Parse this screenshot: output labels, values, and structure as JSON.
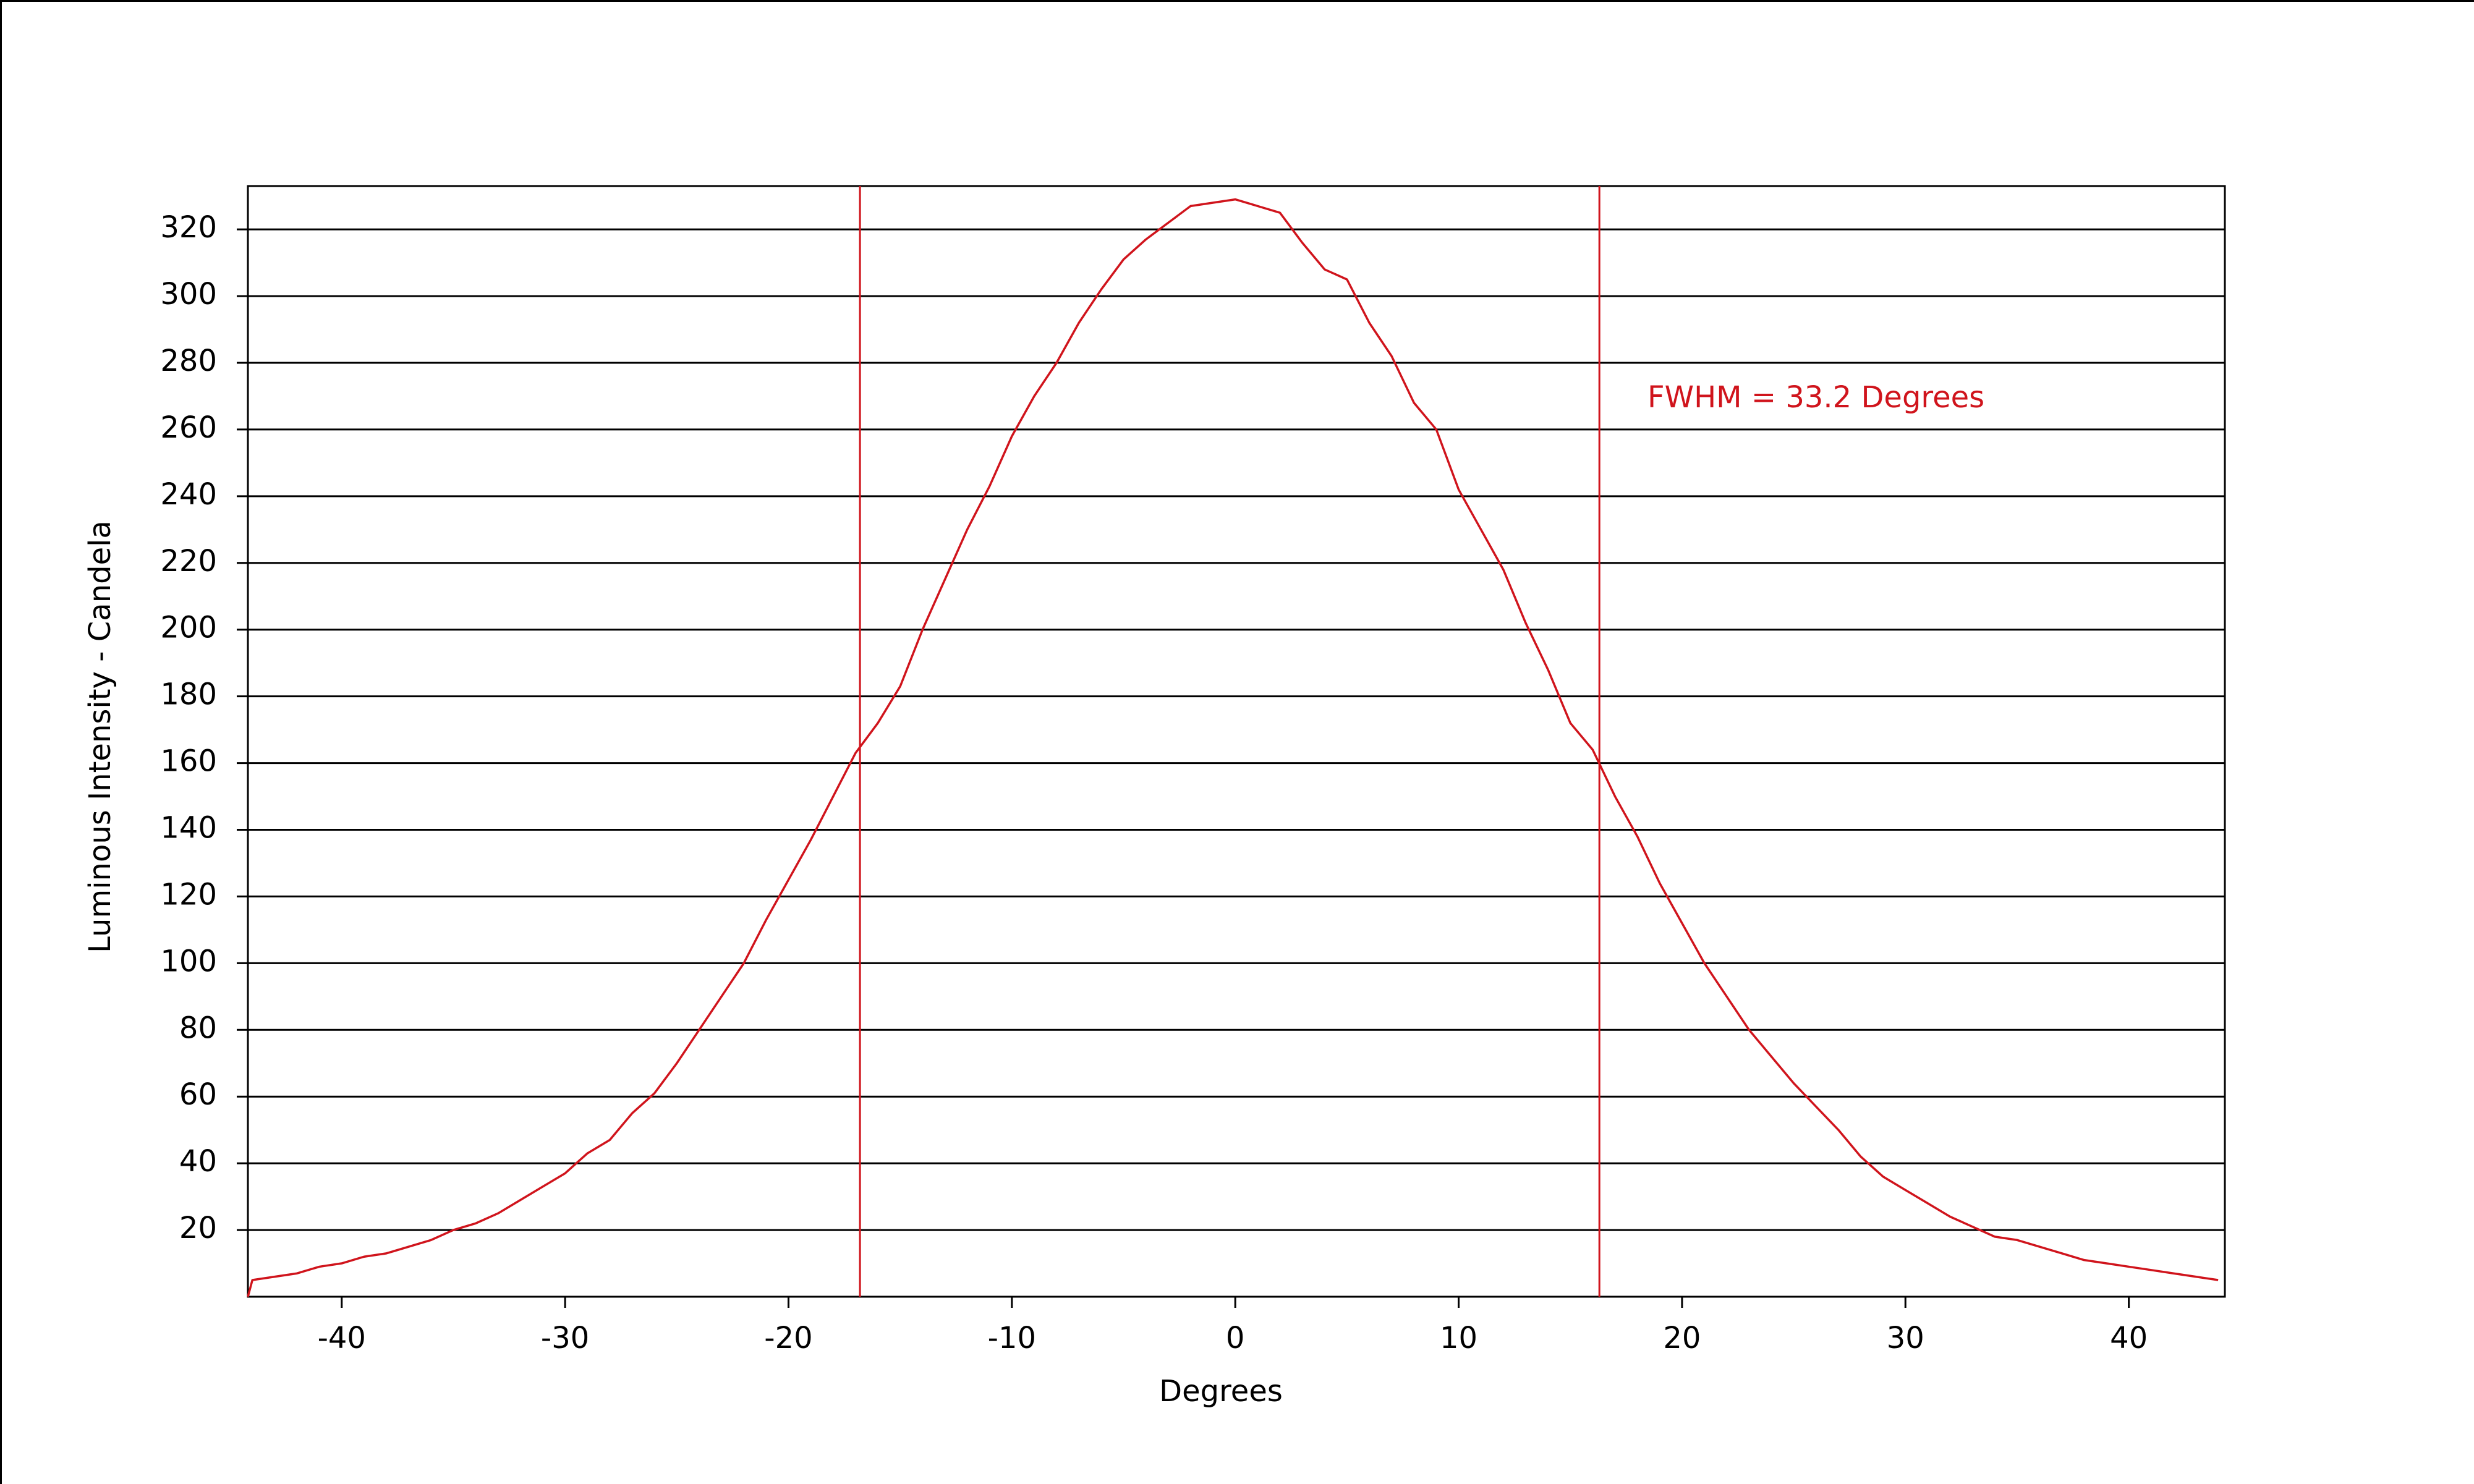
{
  "chart_data": {
    "type": "line",
    "x_label": "Degrees",
    "y_label": "Luminous Intensity - Candela",
    "annotation": "FWHM = 33.2 Degrees",
    "x": [
      -44.2,
      -44,
      -43,
      -42,
      -41,
      -40,
      -39,
      -38,
      -37,
      -36,
      -35,
      -34,
      -33,
      -32,
      -31,
      -30,
      -29,
      -28,
      -27,
      -26,
      -25,
      -24,
      -23,
      -22,
      -21,
      -20,
      -19,
      -18,
      -17,
      -16,
      -15,
      -14,
      -13,
      -12,
      -11,
      -10,
      -9,
      -8,
      -7,
      -6,
      -5,
      -4,
      -3,
      -2,
      -1,
      0,
      1,
      2,
      3,
      4,
      5,
      6,
      7,
      8,
      9,
      10,
      11,
      12,
      13,
      14,
      15,
      16,
      17,
      18,
      19,
      20,
      21,
      22,
      23,
      24,
      25,
      26,
      27,
      28,
      29,
      30,
      31,
      32,
      33,
      34,
      35,
      36,
      37,
      38,
      39,
      40,
      41,
      42,
      43,
      44
    ],
    "series": [
      {
        "name": "Luminous Intensity",
        "color": "#d0141c",
        "values": [
          0,
          5,
          6,
          7,
          9,
          10,
          12,
          13,
          15,
          17,
          20,
          22,
          25,
          29,
          33,
          37,
          43,
          47,
          55,
          61,
          70,
          80,
          90,
          100,
          113,
          125,
          137,
          150,
          163,
          172,
          183,
          200,
          215,
          230,
          243,
          258,
          270,
          280,
          292,
          302,
          311,
          317,
          322,
          327,
          328,
          329,
          327,
          325,
          316,
          308,
          305,
          292,
          282,
          268,
          260,
          242,
          230,
          218,
          202,
          188,
          172,
          164,
          150,
          138,
          124,
          112,
          100,
          90,
          80,
          72,
          64,
          57,
          50,
          42,
          36,
          32,
          28,
          24,
          21,
          18,
          17,
          15,
          13,
          11,
          10,
          9,
          8,
          7,
          6,
          5
        ]
      }
    ],
    "vlines": [
      -16.8,
      16.3
    ],
    "xlim": [
      -44.2,
      44.3
    ],
    "ylim": [
      0,
      333
    ],
    "xticks": [
      -40,
      -30,
      -20,
      -10,
      0,
      10,
      20,
      30,
      40
    ],
    "yticks": [
      20,
      40,
      60,
      80,
      100,
      120,
      140,
      160,
      180,
      200,
      220,
      240,
      260,
      280,
      300,
      320
    ],
    "grid": true
  }
}
